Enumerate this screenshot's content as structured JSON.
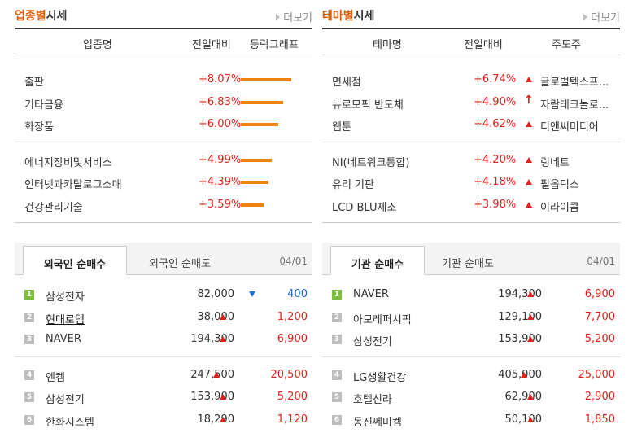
{
  "industry": {
    "title_highlight": "업종별",
    "title_rest": "시세",
    "more": "더보기",
    "headers": [
      "업종명",
      "전일대비",
      "등락그래프"
    ],
    "rows": [
      {
        "name": "출판",
        "change": "+8.07%",
        "graph": 8.07
      },
      {
        "name": "기타금융",
        "change": "+6.83%",
        "graph": 6.83
      },
      {
        "name": "화장품",
        "change": "+6.00%",
        "graph": 6.0
      },
      {
        "name": "에너지장비및서비스",
        "change": "+4.99%",
        "graph": 4.99
      },
      {
        "name": "인터넷과카탈로그소매",
        "change": "+4.39%",
        "graph": 4.39
      },
      {
        "name": "건강관리기술",
        "change": "+3.59%",
        "graph": 3.59
      }
    ]
  },
  "theme": {
    "title_highlight": "테마별",
    "title_rest": "시세",
    "more": "더보기",
    "headers": [
      "테마명",
      "전일대비",
      "주도주"
    ],
    "rows": [
      {
        "name": "면세점",
        "change": "+6.74%",
        "leader": "글로벌텍스프...",
        "icon": "triangle-up-icon"
      },
      {
        "name": "뉴로모픽 반도체",
        "change": "+4.90%",
        "leader": "자람테크놀로...",
        "icon": "arrow-up-icon"
      },
      {
        "name": "웹툰",
        "change": "+4.62%",
        "leader": "디앤씨미디어",
        "icon": "triangle-up-icon"
      },
      {
        "name": "NI(네트워크통합)",
        "change": "+4.20%",
        "leader": "링네트",
        "icon": "triangle-up-icon"
      },
      {
        "name": "유리 기판",
        "change": "+4.18%",
        "leader": "필옵틱스",
        "icon": "triangle-up-icon"
      },
      {
        "name": "LCD BLU제조",
        "change": "+3.98%",
        "leader": "이라이콤",
        "icon": "triangle-up-icon"
      }
    ]
  },
  "foreign": {
    "tab_active": "외국인 순매수",
    "tab_inactive": "외국인 순매도",
    "date": "04/01",
    "rows": [
      {
        "rank": "1",
        "name": "삼성전자",
        "price": "82,000",
        "diff": "400",
        "dir": "down",
        "underline": false
      },
      {
        "rank": "2",
        "name": "현대로템",
        "price": "38,000",
        "diff": "1,200",
        "dir": "up",
        "underline": true
      },
      {
        "rank": "3",
        "name": "NAVER",
        "price": "194,300",
        "diff": "6,900",
        "dir": "up",
        "underline": false
      },
      {
        "rank": "4",
        "name": "엔켐",
        "price": "247,500",
        "diff": "20,500",
        "dir": "up",
        "underline": false
      },
      {
        "rank": "5",
        "name": "삼성전기",
        "price": "153,900",
        "diff": "5,200",
        "dir": "up",
        "underline": false
      },
      {
        "rank": "6",
        "name": "한화시스템",
        "price": "18,290",
        "diff": "1,120",
        "dir": "up",
        "underline": false
      }
    ]
  },
  "institution": {
    "tab_active": "기관 순매수",
    "tab_inactive": "기관 순매도",
    "date": "04/01",
    "rows": [
      {
        "rank": "1",
        "name": "NAVER",
        "price": "194,300",
        "diff": "6,900",
        "dir": "up",
        "underline": false
      },
      {
        "rank": "2",
        "name": "아모레퍼시픽",
        "price": "129,100",
        "diff": "7,700",
        "dir": "up",
        "underline": false
      },
      {
        "rank": "3",
        "name": "삼성전기",
        "price": "153,900",
        "diff": "5,200",
        "dir": "up",
        "underline": false
      },
      {
        "rank": "4",
        "name": "LG생활건강",
        "price": "405,000",
        "diff": "25,000",
        "dir": "up",
        "underline": false
      },
      {
        "rank": "5",
        "name": "호텔신라",
        "price": "62,900",
        "diff": "2,900",
        "dir": "up",
        "underline": false
      },
      {
        "rank": "6",
        "name": "동진쎄미켐",
        "price": "50,100",
        "diff": "1,850",
        "dir": "up",
        "underline": false
      }
    ]
  },
  "colors": {
    "accent": "#e05a00",
    "up": "#e0201b",
    "down": "#1a6ed8",
    "bar": "#f0820f",
    "rank_top": "#7cbf3f",
    "rank_rest": "#bdbdbd"
  }
}
